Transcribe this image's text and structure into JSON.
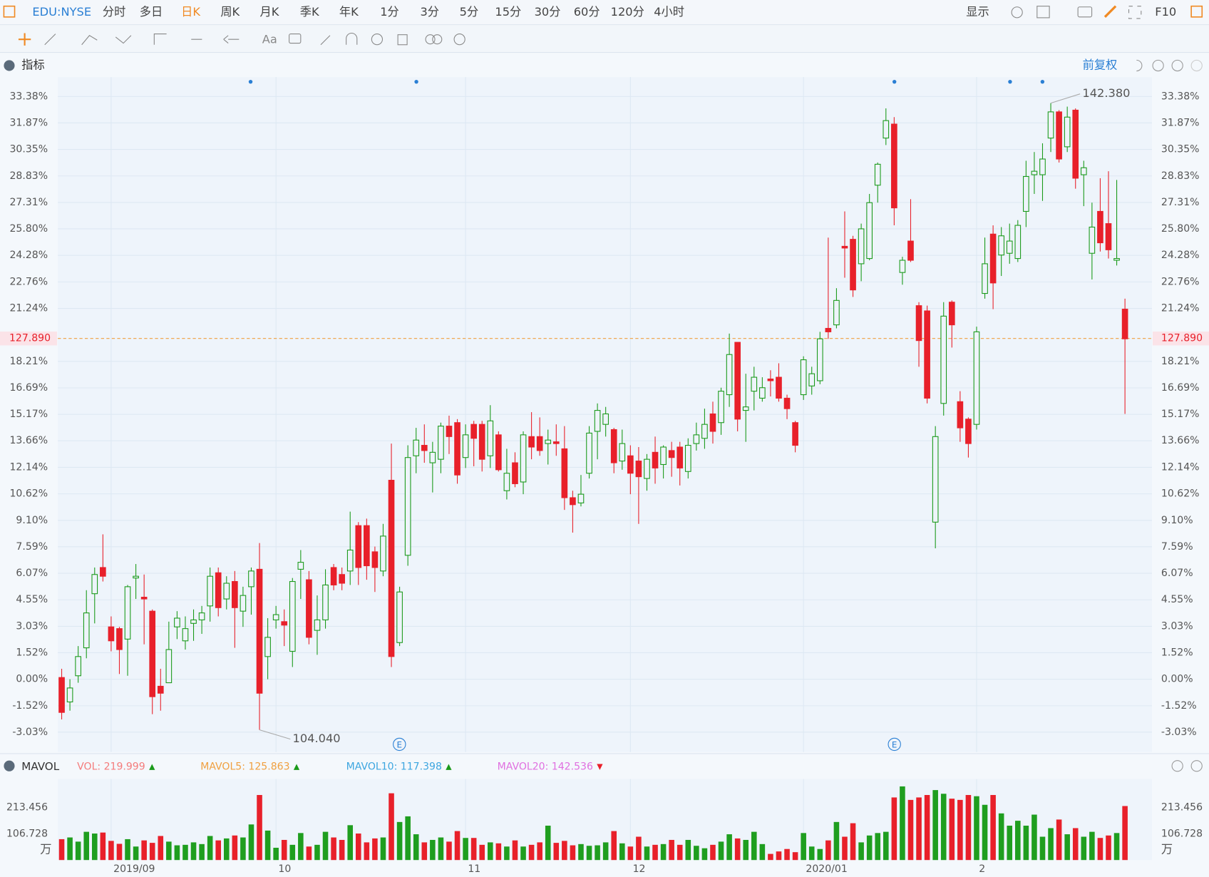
{
  "toolbar": {
    "symbol": "EDU:NYSE",
    "periods": [
      "分时",
      "多日",
      "日K",
      "周K",
      "月K",
      "季K",
      "年K",
      "1分",
      "3分",
      "5分",
      "15分",
      "30分",
      "60分",
      "120分",
      "4小时"
    ],
    "active_period": "日K",
    "display": "显示",
    "f10": "F10",
    "text_tool": "Aa"
  },
  "indicator_header": {
    "title": "指标",
    "adjust": "前复权"
  },
  "chart_data": [
    {
      "type": "candlestick",
      "up_color": "#1a9a1a",
      "down_color": "#e8202a",
      "categories": [
        null,
        null,
        null,
        null,
        null,
        null,
        "2019/09",
        null,
        null,
        null,
        null,
        null,
        null,
        null,
        null,
        null,
        null,
        null,
        null,
        null,
        null,
        null,
        null,
        null,
        null,
        null,
        "10",
        null,
        null,
        null,
        null,
        null,
        null,
        null,
        null,
        null,
        null,
        null,
        null,
        null,
        null,
        null,
        null,
        null,
        null,
        null,
        null,
        null,
        null,
        "11",
        null,
        null,
        null,
        null,
        null,
        null,
        null,
        null,
        null,
        null,
        null,
        null,
        null,
        null,
        null,
        null,
        null,
        null,
        null,
        "12",
        null,
        null,
        null,
        null,
        null,
        null,
        null,
        null,
        null,
        null,
        null,
        null,
        null,
        null,
        null,
        null,
        null,
        null,
        null,
        null,
        "2020/01",
        null,
        null,
        null,
        null,
        null,
        null,
        null,
        null,
        null,
        null,
        null,
        null,
        null,
        null,
        null,
        null,
        null,
        null,
        null,
        null,
        "2",
        null,
        null,
        null,
        null,
        null,
        null,
        null,
        null,
        null,
        null,
        null,
        null,
        null,
        null,
        null,
        null,
        null,
        null
      ],
      "open": [
        0.1,
        -1.3,
        0.2,
        1.8,
        4.9,
        6.4,
        3.0,
        2.9,
        2.3,
        5.8,
        4.7,
        3.9,
        -0.4,
        -0.2,
        3.0,
        2.2,
        3.2,
        3.4,
        4.2,
        6.1,
        4.6,
        5.6,
        3.9,
        5.3,
        6.3,
        1.3,
        3.4,
        3.3,
        1.6,
        6.3,
        5.7,
        2.8,
        3.4,
        6.4,
        6.0,
        6.2,
        8.8,
        8.8,
        7.3,
        6.2,
        11.4,
        2.1,
        7.1,
        12.8,
        13.4,
        12.4,
        12.6,
        14.5,
        14.7,
        12.7,
        14.6,
        14.6,
        12.8,
        14.0,
        10.8,
        12.4,
        11.3,
        13.9,
        13.9,
        13.5,
        13.6,
        13.2,
        10.4,
        10.1,
        11.8,
        14.2,
        14.6,
        14.3,
        12.5,
        12.8,
        12.5,
        11.5,
        13.0,
        12.3,
        13.1,
        13.3,
        11.9,
        13.5,
        13.8,
        15.2,
        14.7,
        16.3,
        19.3,
        15.4,
        16.5,
        16.1,
        17.2,
        17.3,
        16.1,
        14.7,
        16.3,
        16.8,
        17.1,
        20.1,
        20.3,
        24.8,
        25.2,
        23.8,
        24.1,
        28.3,
        31.0,
        31.8,
        23.3,
        25.1,
        21.4,
        21.1,
        9.0,
        15.8,
        21.6,
        15.9,
        14.9,
        14.6,
        22.1,
        25.5,
        24.3,
        24.4,
        24.1,
        26.8,
        28.9,
        28.9,
        31.0,
        32.5,
        30.5,
        32.6,
        28.9,
        24.4,
        26.8,
        26.1,
        24.0,
        21.2
      ],
      "high": [
        0.6,
        0.0,
        1.9,
        5.1,
        6.4,
        8.3,
        3.6,
        3.0,
        5.4,
        6.6,
        6.0,
        4.0,
        0.6,
        3.3,
        3.9,
        3.6,
        4.0,
        4.2,
        6.4,
        6.4,
        5.9,
        6.2,
        5.3,
        6.4,
        7.8,
        3.5,
        4.2,
        4.0,
        5.8,
        7.4,
        6.2,
        4.8,
        6.3,
        6.6,
        6.4,
        9.6,
        9.0,
        9.2,
        7.6,
        8.9,
        13.5,
        5.3,
        13.4,
        14.4,
        14.6,
        13.6,
        14.7,
        15.1,
        14.9,
        14.6,
        14.8,
        14.8,
        15.7,
        14.2,
        13.2,
        13.0,
        14.2,
        15.3,
        15.0,
        14.3,
        14.6,
        14.5,
        10.8,
        11.7,
        14.5,
        15.8,
        15.6,
        14.4,
        14.3,
        13.4,
        13.3,
        12.9,
        13.9,
        13.4,
        13.6,
        13.6,
        13.8,
        14.7,
        15.5,
        15.9,
        16.7,
        19.8,
        19.3,
        17.5,
        17.9,
        17.3,
        17.7,
        18.1,
        16.3,
        14.8,
        18.5,
        17.9,
        19.9,
        25.3,
        22.4,
        26.8,
        25.4,
        26.1,
        27.8,
        29.6,
        32.7,
        32.2,
        24.2,
        27.5,
        21.6,
        21.4,
        14.5,
        21.6,
        21.7,
        16.5,
        15.0,
        20.2,
        25.3,
        26.0,
        25.9,
        26.1,
        26.3,
        29.7,
        30.2,
        30.7,
        33.0,
        32.6,
        32.8,
        32.7,
        29.7,
        27.3,
        28.7,
        29.1,
        28.6,
        21.8
      ],
      "low": [
        -2.3,
        -1.8,
        -0.2,
        1.2,
        3.2,
        5.6,
        1.6,
        0.3,
        0.2,
        4.6,
        2.0,
        -2.0,
        -1.8,
        -0.1,
        2.3,
        1.7,
        2.2,
        2.6,
        3.3,
        3.6,
        4.0,
        1.8,
        3.0,
        3.7,
        -2.9,
        0.0,
        2.9,
        1.9,
        0.7,
        4.6,
        2.0,
        1.4,
        2.9,
        5.1,
        5.1,
        5.4,
        5.4,
        5.7,
        5.0,
        5.9,
        0.7,
        1.9,
        6.5,
        11.8,
        12.4,
        10.7,
        11.8,
        12.9,
        11.2,
        12.1,
        12.2,
        11.9,
        12.1,
        11.9,
        10.3,
        11.0,
        10.6,
        12.6,
        12.8,
        12.3,
        12.8,
        9.7,
        8.4,
        9.9,
        11.5,
        12.6,
        13.9,
        11.8,
        12.0,
        10.6,
        8.9,
        10.8,
        11.2,
        11.5,
        11.6,
        11.1,
        11.5,
        13.1,
        13.2,
        13.5,
        14.0,
        15.6,
        14.2,
        13.6,
        15.4,
        15.9,
        16.2,
        15.9,
        14.9,
        13.0,
        16.0,
        16.3,
        16.9,
        19.5,
        20.1,
        23.0,
        21.9,
        22.8,
        24.0,
        27.3,
        30.6,
        26.0,
        22.6,
        23.9,
        17.9,
        15.8,
        7.5,
        15.1,
        19.0,
        13.6,
        12.7,
        14.3,
        21.8,
        21.2,
        23.1,
        23.8,
        23.9,
        25.9,
        27.8,
        27.4,
        30.2,
        29.6,
        30.2,
        28.1,
        27.1,
        22.9,
        24.5,
        24.1,
        23.7,
        15.2
      ],
      "close": [
        -1.9,
        -0.5,
        1.3,
        3.8,
        6.0,
        5.9,
        2.2,
        1.7,
        5.3,
        5.9,
        4.6,
        -1.0,
        -0.8,
        1.7,
        3.5,
        2.9,
        3.4,
        3.8,
        5.9,
        4.1,
        5.5,
        4.1,
        4.8,
        6.2,
        -0.8,
        2.4,
        3.7,
        3.1,
        5.6,
        6.7,
        2.4,
        3.4,
        5.4,
        5.4,
        5.5,
        7.4,
        6.4,
        6.5,
        6.4,
        8.2,
        1.3,
        5.0,
        12.7,
        13.7,
        13.1,
        13.0,
        14.5,
        13.9,
        11.7,
        14.0,
        13.8,
        12.6,
        14.8,
        12.0,
        11.8,
        11.2,
        14.0,
        13.3,
        13.1,
        13.7,
        13.5,
        10.4,
        10.0,
        10.6,
        14.1,
        15.4,
        15.2,
        12.4,
        13.5,
        11.8,
        11.6,
        12.6,
        12.1,
        13.3,
        12.7,
        12.1,
        13.4,
        14.0,
        14.6,
        14.2,
        16.5,
        18.6,
        14.9,
        15.6,
        17.3,
        16.7,
        17.1,
        16.1,
        15.5,
        13.4,
        18.3,
        17.5,
        19.5,
        19.9,
        21.7,
        24.7,
        22.3,
        25.8,
        27.3,
        29.5,
        32.0,
        27.0,
        24.0,
        24.0,
        19.4,
        16.1,
        13.9,
        20.8,
        20.3,
        14.4,
        13.5,
        19.9,
        23.8,
        22.7,
        25.4,
        25.1,
        26.0,
        28.8,
        29.1,
        29.8,
        32.5,
        29.8,
        32.2,
        28.7,
        29.3,
        25.9,
        25.0,
        24.6,
        24.1,
        19.5
      ],
      "ylim": [
        -4.17,
        34.49
      ],
      "yticks": [
        {
          "value": 33.38,
          "label": "33.38%"
        },
        {
          "value": 31.87,
          "label": "31.87%"
        },
        {
          "value": 30.35,
          "label": "30.35%"
        },
        {
          "value": 28.83,
          "label": "28.83%"
        },
        {
          "value": 27.31,
          "label": "27.31%"
        },
        {
          "value": 25.8,
          "label": "25.80%"
        },
        {
          "value": 24.28,
          "label": "24.28%"
        },
        {
          "value": 22.76,
          "label": "22.76%"
        },
        {
          "value": 21.24,
          "label": "21.24%"
        },
        {
          "value": 18.21,
          "label": "18.21%"
        },
        {
          "value": 16.69,
          "label": "16.69%"
        },
        {
          "value": 15.17,
          "label": "15.17%"
        },
        {
          "value": 13.66,
          "label": "13.66%"
        },
        {
          "value": 12.14,
          "label": "12.14%"
        },
        {
          "value": 10.62,
          "label": "10.62%"
        },
        {
          "value": 9.1,
          "label": "9.10%"
        },
        {
          "value": 7.59,
          "label": "7.59%"
        },
        {
          "value": 6.07,
          "label": "6.07%"
        },
        {
          "value": 4.55,
          "label": "4.55%"
        },
        {
          "value": 3.03,
          "label": "3.03%"
        },
        {
          "value": 1.52,
          "label": "1.52%"
        },
        {
          "value": 0,
          "label": "0.00%"
        },
        {
          "value": -1.52,
          "label": "-1.52%"
        },
        {
          "value": -3.03,
          "label": "-3.03%"
        }
      ],
      "price_line": {
        "value": 19.52,
        "label": "127.890"
      },
      "max_label": "142.380",
      "min_label": "104.040",
      "event_label": "E",
      "grid": true
    },
    {
      "type": "bar",
      "title": "MAVOL",
      "unit": "万",
      "up_color": "#1f9e1f",
      "down_color": "#e8202a",
      "legend": [
        {
          "name": "VOL: 219.999",
          "color": "#f47c7c",
          "arrow": "▲",
          "arrow_color": "#1a9a1a"
        },
        {
          "name": "MAVOL5: 125.863",
          "color": "#f0a040",
          "arrow": "▲",
          "arrow_color": "#1a9a1a"
        },
        {
          "name": "MAVOL10: 117.398",
          "color": "#3da6e0",
          "arrow": "▲",
          "arrow_color": "#1a9a1a"
        },
        {
          "name": "MAVOL20: 142.536",
          "color": "#e070e0",
          "arrow": "▼",
          "arrow_color": "#e8202a"
        }
      ],
      "values": [
        85,
        92,
        75,
        115,
        108,
        112,
        78,
        66,
        85,
        55,
        80,
        70,
        98,
        75,
        60,
        62,
        72,
        65,
        98,
        80,
        88,
        100,
        92,
        145,
        265,
        120,
        50,
        82,
        62,
        110,
        55,
        62,
        115,
        92,
        82,
        142,
        108,
        72,
        88,
        92,
        272,
        155,
        178,
        105,
        72,
        82,
        92,
        75,
        118,
        90,
        90,
        62,
        72,
        68,
        55,
        80,
        55,
        62,
        72,
        140,
        70,
        78,
        60,
        65,
        58,
        60,
        72,
        118,
        68,
        55,
        95,
        55,
        62,
        65,
        82,
        62,
        82,
        58,
        48,
        62,
        75,
        105,
        88,
        82,
        115,
        65,
        25,
        35,
        45,
        32,
        110,
        55,
        45,
        80,
        155,
        95,
        150,
        72,
        100,
        110,
        115,
        255,
        300,
        245,
        255,
        265,
        285,
        270,
        250,
        245,
        265,
        260,
        225,
        265,
        190,
        140,
        160,
        140,
        185,
        95,
        130,
        165,
        105,
        130,
        95,
        115,
        90,
        100,
        110,
        219.999
      ],
      "ylim": [
        0,
        330
      ],
      "yticks": [
        106.728,
        213.456
      ]
    }
  ]
}
